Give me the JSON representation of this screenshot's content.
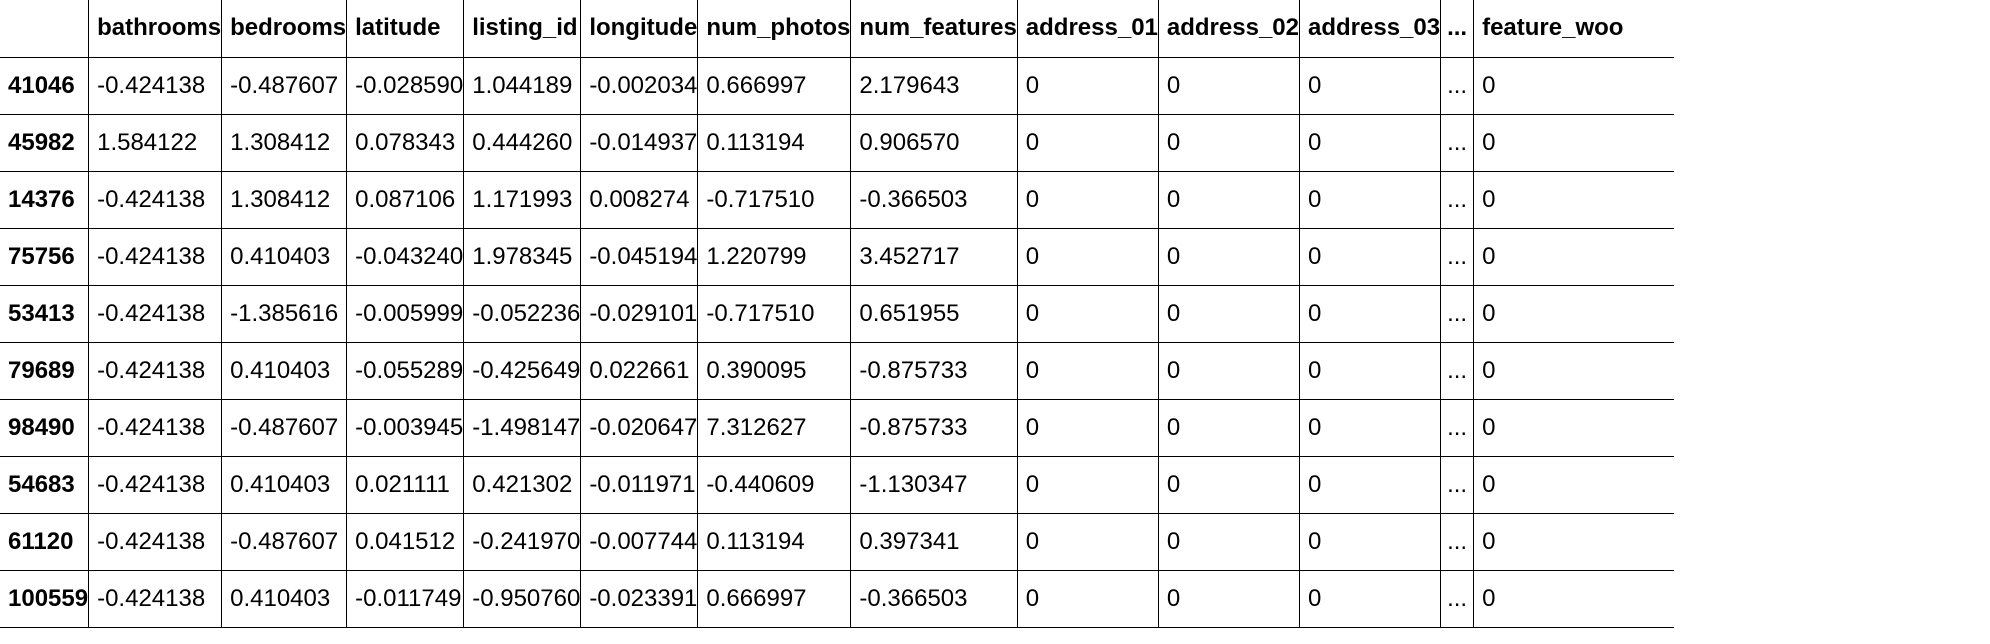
{
  "table": {
    "columns": [
      "",
      "bathrooms",
      "bedrooms",
      "latitude",
      "listing_id",
      "longitude",
      "num_photos",
      "num_features",
      "address_01",
      "address_02",
      "address_03",
      "...",
      "feature_woo"
    ],
    "rows": [
      {
        "index": "41046",
        "cells": [
          "-0.424138",
          "-0.487607",
          "-0.028590",
          "1.044189",
          "-0.002034",
          "0.666997",
          "2.179643",
          "0",
          "0",
          "0",
          "...",
          "0"
        ]
      },
      {
        "index": "45982",
        "cells": [
          "1.584122",
          "1.308412",
          "0.078343",
          "0.444260",
          "-0.014937",
          "0.113194",
          "0.906570",
          "0",
          "0",
          "0",
          "...",
          "0"
        ]
      },
      {
        "index": "14376",
        "cells": [
          "-0.424138",
          "1.308412",
          "0.087106",
          "1.171993",
          "0.008274",
          "-0.717510",
          "-0.366503",
          "0",
          "0",
          "0",
          "...",
          "0"
        ]
      },
      {
        "index": "75756",
        "cells": [
          "-0.424138",
          "0.410403",
          "-0.043240",
          "1.978345",
          "-0.045194",
          "1.220799",
          "3.452717",
          "0",
          "0",
          "0",
          "...",
          "0"
        ]
      },
      {
        "index": "53413",
        "cells": [
          "-0.424138",
          "-1.385616",
          "-0.005999",
          "-0.052236",
          "-0.029101",
          "-0.717510",
          "0.651955",
          "0",
          "0",
          "0",
          "...",
          "0"
        ]
      },
      {
        "index": "79689",
        "cells": [
          "-0.424138",
          "0.410403",
          "-0.055289",
          "-0.425649",
          "0.022661",
          "0.390095",
          "-0.875733",
          "0",
          "0",
          "0",
          "...",
          "0"
        ]
      },
      {
        "index": "98490",
        "cells": [
          "-0.424138",
          "-0.487607",
          "-0.003945",
          "-1.498147",
          "-0.020647",
          "7.312627",
          "-0.875733",
          "0",
          "0",
          "0",
          "...",
          "0"
        ]
      },
      {
        "index": "54683",
        "cells": [
          "-0.424138",
          "0.410403",
          "0.021111",
          "0.421302",
          "-0.011971",
          "-0.440609",
          "-1.130347",
          "0",
          "0",
          "0",
          "...",
          "0"
        ]
      },
      {
        "index": "61120",
        "cells": [
          "-0.424138",
          "-0.487607",
          "0.041512",
          "-0.241970",
          "-0.007744",
          "0.113194",
          "0.397341",
          "0",
          "0",
          "0",
          "...",
          "0"
        ]
      },
      {
        "index": "100559",
        "cells": [
          "-0.424138",
          "0.410403",
          "-0.011749",
          "-0.950760",
          "-0.023391",
          "0.666997",
          "-0.366503",
          "0",
          "0",
          "0",
          "...",
          "0"
        ]
      }
    ]
  }
}
